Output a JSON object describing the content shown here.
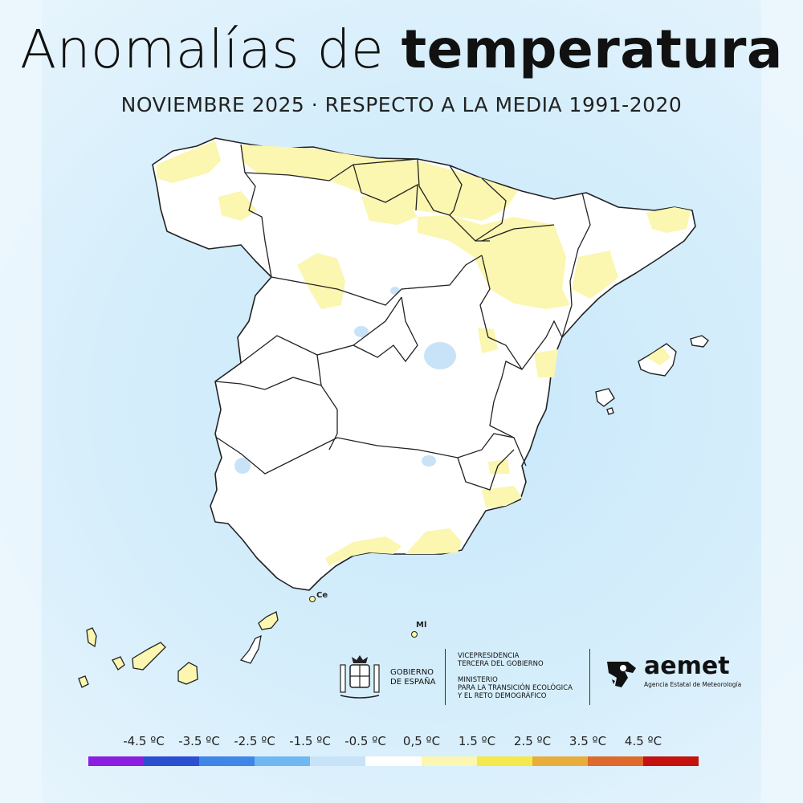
{
  "header": {
    "title_light": "Anomalías de",
    "title_bold": "temperatura",
    "subtitle": "NOVIEMBRE 2025 · RESPECTO A LA MEDIA 1991-2020"
  },
  "map": {
    "labels": {
      "ceuta": "Ce",
      "melilla": "Ml"
    }
  },
  "footer": {
    "gobierno": [
      "GOBIERNO",
      "DE ESPAÑA"
    ],
    "vicepresidencia": [
      "VICEPRESIDENCIA",
      "TERCERA DEL GOBIERNO"
    ],
    "ministerio": [
      "MINISTERIO",
      "PARA LA TRANSICIÓN ECOLÓGICA",
      "Y EL RETO DEMOGRÁFICO"
    ],
    "aemet_name": "aemet",
    "aemet_subtitle": "Agencia Estatal de Meteorología"
  },
  "legend": {
    "labels": [
      "-4.5 ºC",
      "-3.5 ºC",
      "-2.5 ºC",
      "-1.5 ºC",
      "-0.5 ºC",
      "0,5 ºC",
      "1.5 ºC",
      "2.5 ºC",
      "3.5 ºC",
      "4.5 ºC"
    ],
    "colors": [
      "#8a1fe0",
      "#2b4fd1",
      "#3f86e8",
      "#6fb8f2",
      "#c8e3f8",
      "#ffffff",
      "#fbf6b0",
      "#f5e84a",
      "#e9ad3c",
      "#de6a2c",
      "#c4120f"
    ]
  }
}
